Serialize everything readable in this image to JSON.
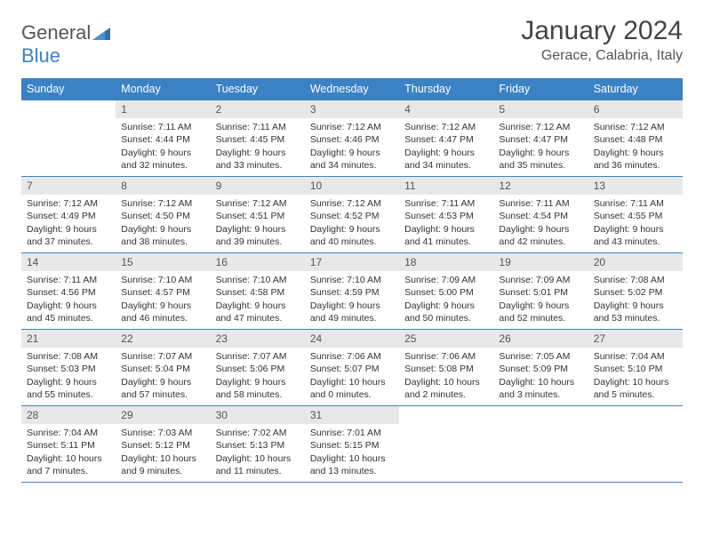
{
  "brand": {
    "general": "General",
    "blue": "Blue"
  },
  "title": "January 2024",
  "location": "Gerace, Calabria, Italy",
  "colors": {
    "header_bg": "#3b82c4",
    "header_text": "#ffffff",
    "daynum_bg": "#e8e8e8",
    "border": "#3b82c4",
    "text": "#333333"
  },
  "weekdays": [
    "Sunday",
    "Monday",
    "Tuesday",
    "Wednesday",
    "Thursday",
    "Friday",
    "Saturday"
  ],
  "weeks": [
    [
      {
        "n": "",
        "sr": "",
        "ss": "",
        "dl": ""
      },
      {
        "n": "1",
        "sr": "Sunrise: 7:11 AM",
        "ss": "Sunset: 4:44 PM",
        "dl": "Daylight: 9 hours and 32 minutes."
      },
      {
        "n": "2",
        "sr": "Sunrise: 7:11 AM",
        "ss": "Sunset: 4:45 PM",
        "dl": "Daylight: 9 hours and 33 minutes."
      },
      {
        "n": "3",
        "sr": "Sunrise: 7:12 AM",
        "ss": "Sunset: 4:46 PM",
        "dl": "Daylight: 9 hours and 34 minutes."
      },
      {
        "n": "4",
        "sr": "Sunrise: 7:12 AM",
        "ss": "Sunset: 4:47 PM",
        "dl": "Daylight: 9 hours and 34 minutes."
      },
      {
        "n": "5",
        "sr": "Sunrise: 7:12 AM",
        "ss": "Sunset: 4:47 PM",
        "dl": "Daylight: 9 hours and 35 minutes."
      },
      {
        "n": "6",
        "sr": "Sunrise: 7:12 AM",
        "ss": "Sunset: 4:48 PM",
        "dl": "Daylight: 9 hours and 36 minutes."
      }
    ],
    [
      {
        "n": "7",
        "sr": "Sunrise: 7:12 AM",
        "ss": "Sunset: 4:49 PM",
        "dl": "Daylight: 9 hours and 37 minutes."
      },
      {
        "n": "8",
        "sr": "Sunrise: 7:12 AM",
        "ss": "Sunset: 4:50 PM",
        "dl": "Daylight: 9 hours and 38 minutes."
      },
      {
        "n": "9",
        "sr": "Sunrise: 7:12 AM",
        "ss": "Sunset: 4:51 PM",
        "dl": "Daylight: 9 hours and 39 minutes."
      },
      {
        "n": "10",
        "sr": "Sunrise: 7:12 AM",
        "ss": "Sunset: 4:52 PM",
        "dl": "Daylight: 9 hours and 40 minutes."
      },
      {
        "n": "11",
        "sr": "Sunrise: 7:11 AM",
        "ss": "Sunset: 4:53 PM",
        "dl": "Daylight: 9 hours and 41 minutes."
      },
      {
        "n": "12",
        "sr": "Sunrise: 7:11 AM",
        "ss": "Sunset: 4:54 PM",
        "dl": "Daylight: 9 hours and 42 minutes."
      },
      {
        "n": "13",
        "sr": "Sunrise: 7:11 AM",
        "ss": "Sunset: 4:55 PM",
        "dl": "Daylight: 9 hours and 43 minutes."
      }
    ],
    [
      {
        "n": "14",
        "sr": "Sunrise: 7:11 AM",
        "ss": "Sunset: 4:56 PM",
        "dl": "Daylight: 9 hours and 45 minutes."
      },
      {
        "n": "15",
        "sr": "Sunrise: 7:10 AM",
        "ss": "Sunset: 4:57 PM",
        "dl": "Daylight: 9 hours and 46 minutes."
      },
      {
        "n": "16",
        "sr": "Sunrise: 7:10 AM",
        "ss": "Sunset: 4:58 PM",
        "dl": "Daylight: 9 hours and 47 minutes."
      },
      {
        "n": "17",
        "sr": "Sunrise: 7:10 AM",
        "ss": "Sunset: 4:59 PM",
        "dl": "Daylight: 9 hours and 49 minutes."
      },
      {
        "n": "18",
        "sr": "Sunrise: 7:09 AM",
        "ss": "Sunset: 5:00 PM",
        "dl": "Daylight: 9 hours and 50 minutes."
      },
      {
        "n": "19",
        "sr": "Sunrise: 7:09 AM",
        "ss": "Sunset: 5:01 PM",
        "dl": "Daylight: 9 hours and 52 minutes."
      },
      {
        "n": "20",
        "sr": "Sunrise: 7:08 AM",
        "ss": "Sunset: 5:02 PM",
        "dl": "Daylight: 9 hours and 53 minutes."
      }
    ],
    [
      {
        "n": "21",
        "sr": "Sunrise: 7:08 AM",
        "ss": "Sunset: 5:03 PM",
        "dl": "Daylight: 9 hours and 55 minutes."
      },
      {
        "n": "22",
        "sr": "Sunrise: 7:07 AM",
        "ss": "Sunset: 5:04 PM",
        "dl": "Daylight: 9 hours and 57 minutes."
      },
      {
        "n": "23",
        "sr": "Sunrise: 7:07 AM",
        "ss": "Sunset: 5:06 PM",
        "dl": "Daylight: 9 hours and 58 minutes."
      },
      {
        "n": "24",
        "sr": "Sunrise: 7:06 AM",
        "ss": "Sunset: 5:07 PM",
        "dl": "Daylight: 10 hours and 0 minutes."
      },
      {
        "n": "25",
        "sr": "Sunrise: 7:06 AM",
        "ss": "Sunset: 5:08 PM",
        "dl": "Daylight: 10 hours and 2 minutes."
      },
      {
        "n": "26",
        "sr": "Sunrise: 7:05 AM",
        "ss": "Sunset: 5:09 PM",
        "dl": "Daylight: 10 hours and 3 minutes."
      },
      {
        "n": "27",
        "sr": "Sunrise: 7:04 AM",
        "ss": "Sunset: 5:10 PM",
        "dl": "Daylight: 10 hours and 5 minutes."
      }
    ],
    [
      {
        "n": "28",
        "sr": "Sunrise: 7:04 AM",
        "ss": "Sunset: 5:11 PM",
        "dl": "Daylight: 10 hours and 7 minutes."
      },
      {
        "n": "29",
        "sr": "Sunrise: 7:03 AM",
        "ss": "Sunset: 5:12 PM",
        "dl": "Daylight: 10 hours and 9 minutes."
      },
      {
        "n": "30",
        "sr": "Sunrise: 7:02 AM",
        "ss": "Sunset: 5:13 PM",
        "dl": "Daylight: 10 hours and 11 minutes."
      },
      {
        "n": "31",
        "sr": "Sunrise: 7:01 AM",
        "ss": "Sunset: 5:15 PM",
        "dl": "Daylight: 10 hours and 13 minutes."
      },
      {
        "n": "",
        "sr": "",
        "ss": "",
        "dl": ""
      },
      {
        "n": "",
        "sr": "",
        "ss": "",
        "dl": ""
      },
      {
        "n": "",
        "sr": "",
        "ss": "",
        "dl": ""
      }
    ]
  ]
}
